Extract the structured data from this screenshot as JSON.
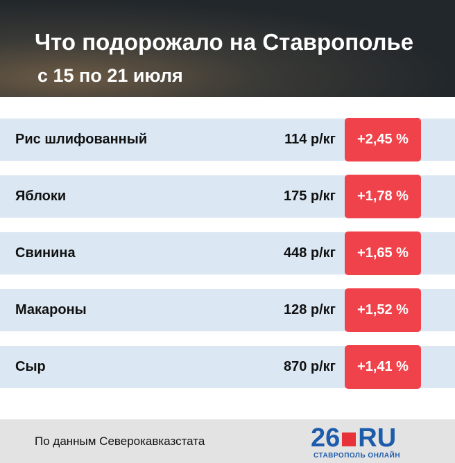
{
  "header": {
    "title": "Что подорожало на Ставрополье",
    "subtitle": "с 15 по 21 июля"
  },
  "table": {
    "rows": [
      {
        "name": "Рис шлифованный",
        "price": "114 р/кг",
        "change": "+2,45 %"
      },
      {
        "name": "Яблоки",
        "price": "175 р/кг",
        "change": "+1,78 %"
      },
      {
        "name": "Свинина",
        "price": "448 р/кг",
        "change": "+1,65 %"
      },
      {
        "name": "Макароны",
        "price": "128 р/кг",
        "change": "+1,52 %"
      },
      {
        "name": "Сыр",
        "price": "870 р/кг",
        "change": "+1,41 %"
      }
    ]
  },
  "footer": {
    "source": "По данным Северокавказстата",
    "logo_number": "26",
    "logo_domain": "RU",
    "logo_tagline": "СТАВРОПОЛЬ ОНЛАЙН"
  }
}
